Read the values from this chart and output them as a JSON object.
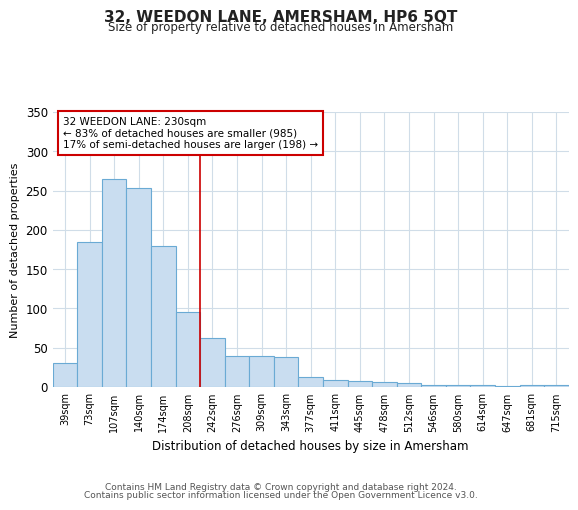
{
  "title": "32, WEEDON LANE, AMERSHAM, HP6 5QT",
  "subtitle": "Size of property relative to detached houses in Amersham",
  "xlabel": "Distribution of detached houses by size in Amersham",
  "ylabel": "Number of detached properties",
  "categories": [
    "39sqm",
    "73sqm",
    "107sqm",
    "140sqm",
    "174sqm",
    "208sqm",
    "242sqm",
    "276sqm",
    "309sqm",
    "343sqm",
    "377sqm",
    "411sqm",
    "445sqm",
    "478sqm",
    "512sqm",
    "546sqm",
    "580sqm",
    "614sqm",
    "647sqm",
    "681sqm",
    "715sqm"
  ],
  "values": [
    30,
    185,
    265,
    253,
    180,
    95,
    63,
    40,
    40,
    38,
    13,
    9,
    8,
    6,
    5,
    3,
    2,
    2,
    1,
    2,
    2
  ],
  "bar_color": "#c9ddf0",
  "bar_edge_color": "#6aaad4",
  "red_line_index": 6,
  "red_line_color": "#cc0000",
  "annotation_text": "32 WEEDON LANE: 230sqm\n← 83% of detached houses are smaller (985)\n17% of semi-detached houses are larger (198) →",
  "annotation_box_color": "#ffffff",
  "annotation_box_edge": "#cc0000",
  "ylim": [
    0,
    350
  ],
  "yticks": [
    0,
    50,
    100,
    150,
    200,
    250,
    300,
    350
  ],
  "footer1": "Contains HM Land Registry data © Crown copyright and database right 2024.",
  "footer2": "Contains public sector information licensed under the Open Government Licence v3.0.",
  "background_color": "#ffffff",
  "grid_color": "#d0dde8"
}
